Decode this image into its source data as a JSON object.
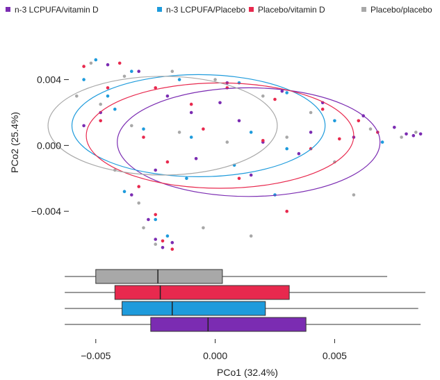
{
  "chart_data": {
    "type": "scatter",
    "xlabel": "PCo1 (32.4%)",
    "ylabel": "PCo2 (25.4%)",
    "xlim": [
      -0.0061,
      0.0088
    ],
    "ylim": [
      -0.0072,
      0.0074
    ],
    "x_ticks": [
      -0.005,
      0.0,
      0.005
    ],
    "x_tick_labels": [
      "−0.005",
      "0.000",
      "0.005"
    ],
    "y_ticks": [
      -0.004,
      0.0,
      0.004
    ],
    "y_tick_labels": [
      "−0.004",
      "0.000",
      "0.004"
    ],
    "grid": false,
    "legend_position": "top",
    "series": [
      {
        "name": "n-3 LCPUFA/vitamin D",
        "color": "#7B2CB2",
        "ellipse": {
          "cx": 0.0014,
          "cy": 0.0002,
          "rx": 0.0055,
          "ry": 0.0033
        },
        "points": [
          [
            0.0005,
            0.0038
          ],
          [
            0.0028,
            0.0033
          ],
          [
            0.0045,
            0.0026
          ],
          [
            0.0062,
            0.0018
          ],
          [
            0.0075,
            0.0011
          ],
          [
            0.008,
            0.0007
          ],
          [
            0.0083,
            0.0006
          ],
          [
            0.0086,
            0.0007
          ],
          [
            -0.0045,
            0.0049
          ],
          [
            -0.0032,
            0.0045
          ],
          [
            -0.002,
            0.003
          ],
          [
            -0.001,
            0.002
          ],
          [
            0.001,
            0.0015
          ],
          [
            0.002,
            0.0002
          ],
          [
            0.0035,
            -0.0005
          ],
          [
            0.0015,
            -0.0018
          ],
          [
            -0.0008,
            -0.0008
          ],
          [
            -0.0025,
            -0.0015
          ],
          [
            -0.0035,
            -0.003
          ],
          [
            -0.0028,
            -0.0045
          ],
          [
            -0.0025,
            -0.0057
          ],
          [
            -0.0022,
            -0.0062
          ],
          [
            -0.0018,
            -0.0059
          ],
          [
            -0.0055,
            0.0012
          ],
          [
            0.004,
            0.0008
          ],
          [
            0.0058,
            0.0005
          ],
          [
            -0.0048,
            0.002
          ],
          [
            0.0002,
            0.0026
          ]
        ]
      },
      {
        "name": "n-3 LCPUFA/Placebo",
        "color": "#1E9BDC",
        "ellipse": {
          "cx": -0.0007,
          "cy": 0.0012,
          "rx": 0.0053,
          "ry": 0.0031
        },
        "points": [
          [
            -0.005,
            0.0052
          ],
          [
            -0.0035,
            0.0045
          ],
          [
            -0.0015,
            0.004
          ],
          [
            0.001,
            0.0038
          ],
          [
            0.003,
            0.0032
          ],
          [
            -0.0042,
            0.0022
          ],
          [
            -0.003,
            0.001
          ],
          [
            -0.001,
            0.0005
          ],
          [
            0.0015,
            0.0008
          ],
          [
            0.003,
            -0.0002
          ],
          [
            -0.0038,
            -0.0028
          ],
          [
            -0.0025,
            -0.0045
          ],
          [
            -0.002,
            -0.0055
          ],
          [
            0.0025,
            -0.003
          ],
          [
            -0.0055,
            0.004
          ],
          [
            0.005,
            0.0015
          ],
          [
            0.007,
            0.0002
          ],
          [
            -0.0012,
            -0.002
          ],
          [
            -0.0045,
            0.003
          ],
          [
            0.0008,
            -0.0012
          ]
        ]
      },
      {
        "name": "Placebo/vitamin D",
        "color": "#E8294E",
        "ellipse": {
          "cx": 0.0002,
          "cy": 0.0006,
          "rx": 0.0056,
          "ry": 0.0032
        },
        "points": [
          [
            -0.0055,
            0.0048
          ],
          [
            -0.004,
            0.005
          ],
          [
            -0.0025,
            0.0035
          ],
          [
            -0.001,
            0.0025
          ],
          [
            0.0005,
            0.0035
          ],
          [
            0.0025,
            0.0028
          ],
          [
            0.0045,
            0.0022
          ],
          [
            0.006,
            0.0015
          ],
          [
            0.0068,
            0.0008
          ],
          [
            -0.0048,
            0.0015
          ],
          [
            -0.003,
            0.0005
          ],
          [
            -0.0005,
            0.001
          ],
          [
            0.002,
            0.0003
          ],
          [
            0.004,
            -0.0002
          ],
          [
            -0.002,
            -0.001
          ],
          [
            0.001,
            -0.002
          ],
          [
            -0.0032,
            -0.0025
          ],
          [
            -0.0025,
            -0.0042
          ],
          [
            -0.0022,
            -0.0058
          ],
          [
            -0.0018,
            -0.0063
          ],
          [
            0.0052,
            0.0004
          ],
          [
            -0.0045,
            0.0035
          ],
          [
            0.003,
            -0.004
          ]
        ]
      },
      {
        "name": "Placebo/placebo",
        "color": "#A8A8A8",
        "ellipse": {
          "cx": -0.0022,
          "cy": 0.0012,
          "rx": 0.0048,
          "ry": 0.003
        },
        "points": [
          [
            -0.0052,
            0.005
          ],
          [
            -0.0038,
            0.0042
          ],
          [
            -0.0018,
            0.0045
          ],
          [
            0.0,
            0.004
          ],
          [
            0.002,
            0.003
          ],
          [
            0.004,
            0.002
          ],
          [
            0.0065,
            0.001
          ],
          [
            0.0078,
            0.0005
          ],
          [
            -0.0048,
            0.0025
          ],
          [
            -0.0035,
            0.0012
          ],
          [
            -0.0015,
            0.0008
          ],
          [
            0.0005,
            0.0002
          ],
          [
            0.003,
            0.0005
          ],
          [
            -0.0042,
            -0.0015
          ],
          [
            -0.0032,
            -0.0035
          ],
          [
            -0.003,
            -0.005
          ],
          [
            -0.0025,
            -0.006
          ],
          [
            0.005,
            -0.001
          ],
          [
            0.0058,
            -0.003
          ],
          [
            -0.0005,
            -0.005
          ],
          [
            0.0015,
            -0.0055
          ],
          [
            -0.0058,
            0.003
          ],
          [
            0.0084,
            0.0008
          ]
        ]
      }
    ],
    "boxplots": [
      {
        "series": "Placebo/placebo",
        "color": "#A8A8A8",
        "whisker_low": -0.0063,
        "q1": -0.005,
        "median": -0.0024,
        "q3": 0.0003,
        "whisker_high": 0.0072
      },
      {
        "series": "Placebo/vitamin D",
        "color": "#E8294E",
        "whisker_low": -0.0063,
        "q1": -0.0042,
        "median": -0.0023,
        "q3": 0.0031,
        "whisker_high": 0.0088
      },
      {
        "series": "n-3 LCPUFA/Placebo",
        "color": "#1E9BDC",
        "whisker_low": -0.0063,
        "q1": -0.0039,
        "median": -0.0018,
        "q3": 0.0021,
        "whisker_high": 0.0085
      },
      {
        "series": "n-3 LCPUFA/vitamin D",
        "color": "#7B2CB2",
        "whisker_low": -0.0063,
        "q1": -0.0027,
        "median": -0.0003,
        "q3": 0.0038,
        "whisker_high": 0.0086
      }
    ]
  }
}
